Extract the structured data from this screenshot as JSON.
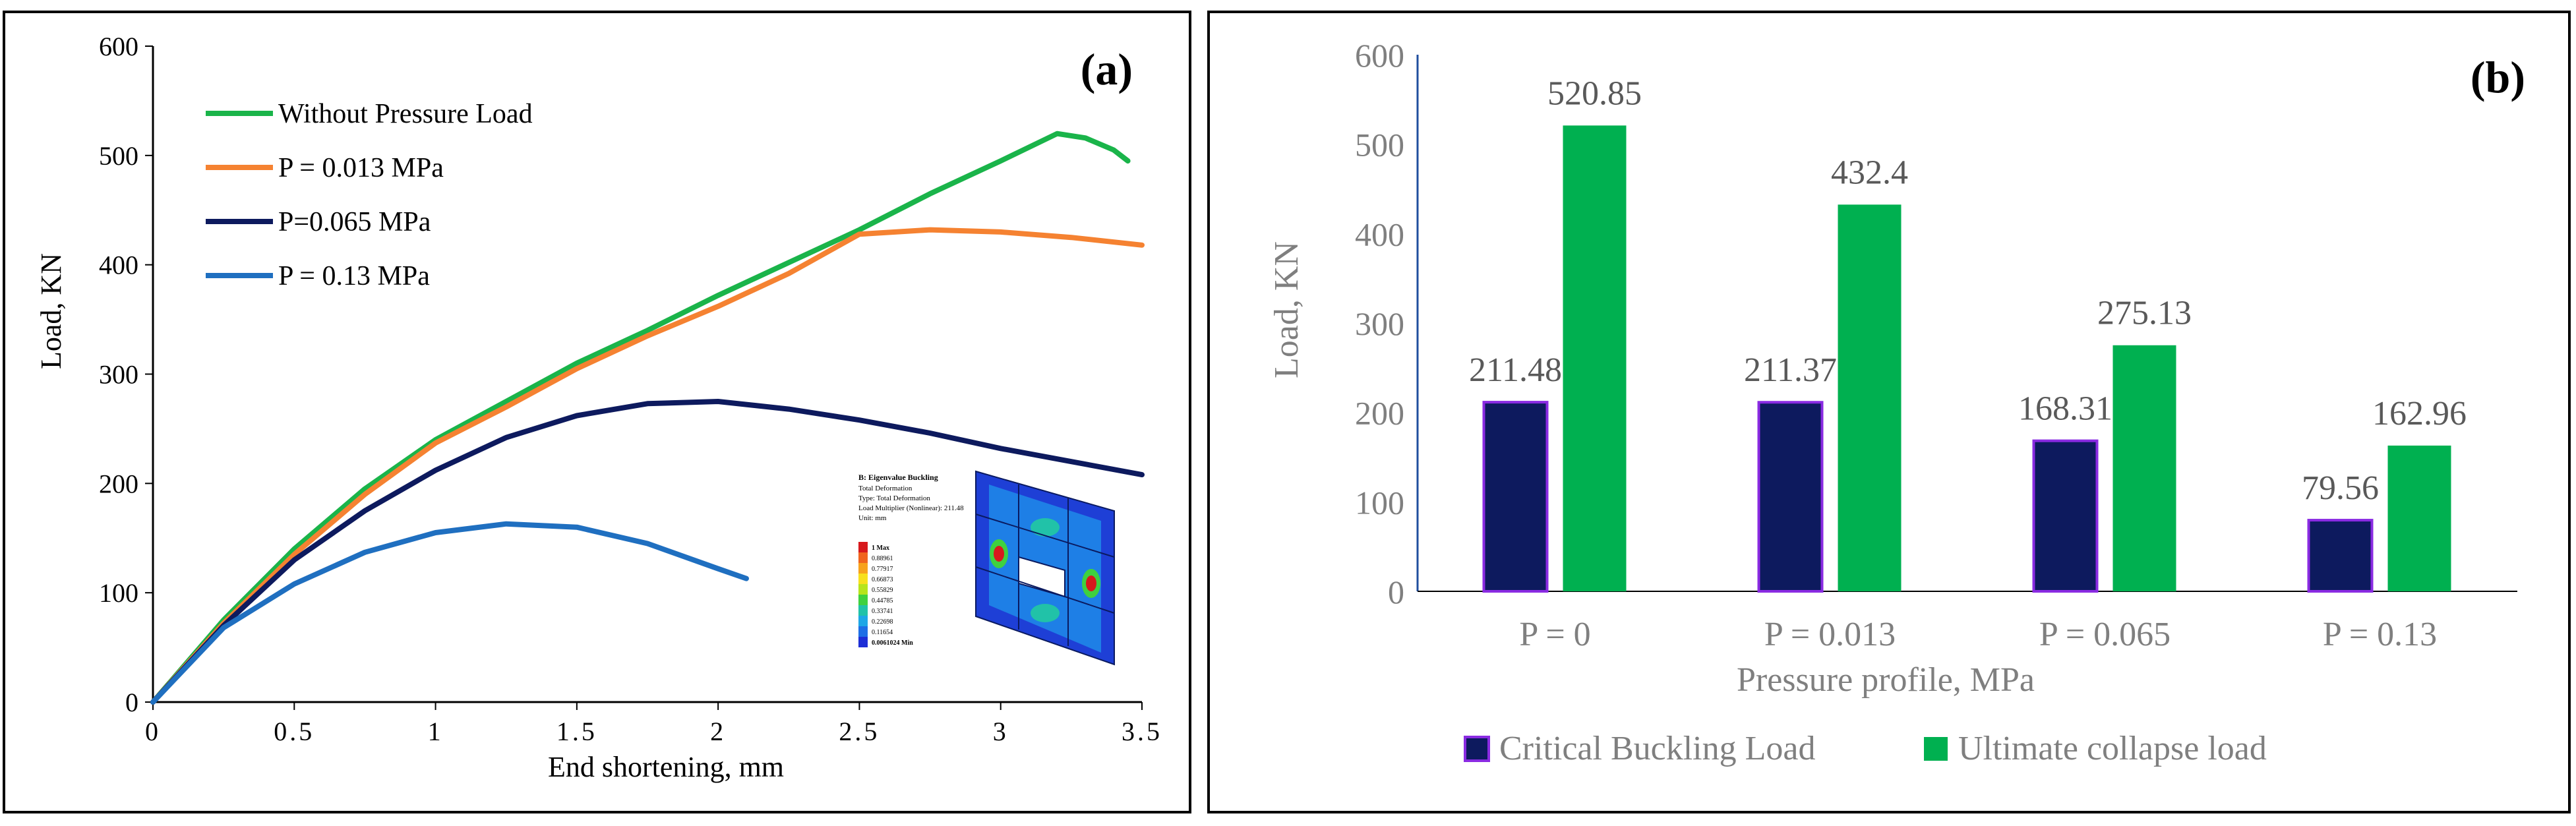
{
  "chart_data": [
    {
      "panel_label": "(a)",
      "type": "line",
      "title": "",
      "xlabel": "End shortening, mm",
      "ylabel": "Load, KN",
      "xlim": [
        0,
        3.5
      ],
      "ylim": [
        0,
        600
      ],
      "xticks": [
        "0",
        "0.5",
        "1",
        "1.5",
        "2",
        "2.5",
        "3",
        "3.5"
      ],
      "yticks": [
        "0",
        "100",
        "200",
        "300",
        "400",
        "500",
        "600"
      ],
      "grid": false,
      "legend_position": "top-left",
      "series": [
        {
          "name": "Without Pressure Load",
          "color": "#1ab44a",
          "points": [
            [
              0,
              0
            ],
            [
              0.25,
              75
            ],
            [
              0.5,
              140
            ],
            [
              0.75,
              195
            ],
            [
              1,
              240
            ],
            [
              1.25,
              275
            ],
            [
              1.5,
              310
            ],
            [
              1.75,
              340
            ],
            [
              2,
              372
            ],
            [
              2.25,
              402
            ],
            [
              2.5,
              432
            ],
            [
              2.75,
              465
            ],
            [
              3,
              495
            ],
            [
              3.2,
              520
            ],
            [
              3.3,
              516
            ],
            [
              3.4,
              505
            ],
            [
              3.45,
              495
            ]
          ]
        },
        {
          "name": "P = 0.013 MPa",
          "color": "#f58231",
          "points": [
            [
              0,
              0
            ],
            [
              0.25,
              72
            ],
            [
              0.5,
              135
            ],
            [
              0.75,
              190
            ],
            [
              1,
              237
            ],
            [
              1.25,
              270
            ],
            [
              1.5,
              305
            ],
            [
              1.75,
              335
            ],
            [
              2,
              362
            ],
            [
              2.25,
              392
            ],
            [
              2.5,
              428
            ],
            [
              2.75,
              432
            ],
            [
              3,
              430
            ],
            [
              3.25,
              425
            ],
            [
              3.5,
              418
            ]
          ]
        },
        {
          "name": "P=0.065 MPa",
          "color": "#0d1a5e",
          "points": [
            [
              0,
              0
            ],
            [
              0.25,
              70
            ],
            [
              0.5,
              130
            ],
            [
              0.75,
              175
            ],
            [
              1,
              212
            ],
            [
              1.25,
              242
            ],
            [
              1.5,
              262
            ],
            [
              1.75,
              273
            ],
            [
              2,
              275
            ],
            [
              2.25,
              268
            ],
            [
              2.5,
              258
            ],
            [
              2.75,
              246
            ],
            [
              3,
              232
            ],
            [
              3.25,
              220
            ],
            [
              3.5,
              208
            ]
          ]
        },
        {
          "name": "P = 0.13 MPa",
          "color": "#1f6fc0",
          "points": [
            [
              0,
              0
            ],
            [
              0.25,
              68
            ],
            [
              0.5,
              108
            ],
            [
              0.75,
              137
            ],
            [
              1,
              155
            ],
            [
              1.25,
              163
            ],
            [
              1.5,
              160
            ],
            [
              1.75,
              145
            ],
            [
              2,
              122
            ],
            [
              2.1,
              113
            ]
          ]
        }
      ],
      "inset": {
        "title": "B: Eigenvalue Buckling",
        "lines": [
          "Total Deformation",
          "Type: Total Deformation",
          "Load Multiplier (Nonlinear): 211.48",
          "Unit: mm"
        ],
        "scale": [
          "1 Max",
          "0.88961",
          "0.77917",
          "0.66873",
          "0.55829",
          "0.44785",
          "0.33741",
          "0.22698",
          "0.11654",
          "0.0061024 Min"
        ],
        "scale_colors": [
          "#d7191c",
          "#f0641e",
          "#f7a21c",
          "#f7e01c",
          "#b6e41c",
          "#3fd13f",
          "#21c2a8",
          "#1ea7e6",
          "#1e6fe6",
          "#1e2fd6"
        ]
      }
    },
    {
      "panel_label": "(b)",
      "type": "bar",
      "title": "",
      "xlabel": "Pressure profile, MPa",
      "ylabel": "Load, KN",
      "ylim": [
        0,
        600
      ],
      "yticks": [
        "0",
        "100",
        "200",
        "300",
        "400",
        "500",
        "600"
      ],
      "categories": [
        "P = 0",
        "P = 0.013",
        "P = 0.065",
        "P = 0.13"
      ],
      "grid": false,
      "legend_position": "bottom",
      "series": [
        {
          "name": "Critical Buckling Load",
          "color": "#0d1a5e",
          "edge_color": "#8a2be2",
          "values": [
            211.48,
            211.37,
            168.31,
            79.56
          ],
          "labels": [
            "211.48",
            "211.37",
            "168.31",
            "79.56"
          ]
        },
        {
          "name": "Ultimate collapse load",
          "color": "#00b050",
          "values": [
            520.85,
            432.4,
            275.13,
            162.96
          ],
          "labels": [
            "520.85",
            "432.4",
            "275.13",
            "162.96"
          ]
        }
      ]
    }
  ]
}
